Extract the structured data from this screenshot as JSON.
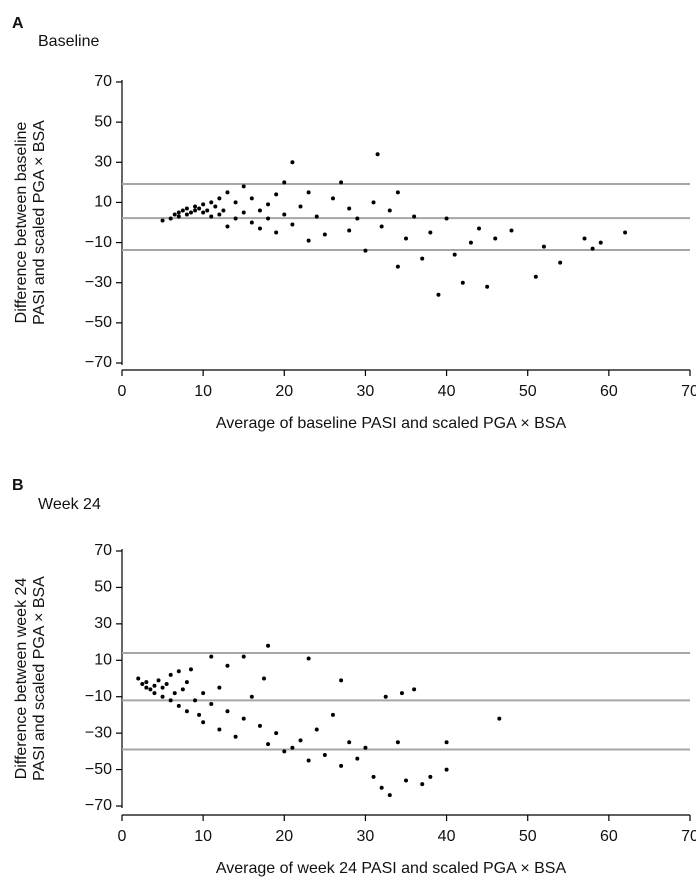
{
  "chart_data": [
    {
      "type": "scatter",
      "panel": "A",
      "subtitle": "Baseline",
      "xlabel": "Average of baseline PASI and scaled PGA × BSA",
      "ylabel": [
        "Difference between baseline",
        "PASI and scaled PGA × BSA"
      ],
      "xlim": [
        0,
        70
      ],
      "ylim": [
        -70,
        70
      ],
      "xticks": [
        0,
        10,
        20,
        30,
        40,
        50,
        60,
        70
      ],
      "yticks": [
        {
          "value": -70,
          "label": "−70"
        },
        {
          "value": -50,
          "label": "−50"
        },
        {
          "value": -30,
          "label": "−30"
        },
        {
          "value": -10,
          "label": "−10"
        },
        10,
        30,
        50,
        70
      ],
      "hlines": [
        19.2,
        2.2,
        -13.7
      ],
      "hline_color": "#a6a6a6",
      "color": "#000000",
      "x": [
        5,
        6,
        6.5,
        7,
        7,
        7.5,
        8,
        8,
        8.5,
        9,
        9,
        9.5,
        10,
        10,
        10.5,
        11,
        11,
        11.5,
        12,
        12,
        12.5,
        13,
        13,
        14,
        14,
        15,
        15,
        16,
        16,
        17,
        17,
        18,
        18,
        19,
        19,
        20,
        20,
        21,
        21,
        22,
        23,
        23,
        24,
        25,
        26,
        27,
        28,
        28,
        29,
        30,
        31,
        31.5,
        32,
        33,
        34,
        34,
        35,
        36,
        37,
        38,
        39,
        40,
        41,
        42,
        43,
        44,
        45,
        46,
        48,
        51,
        52,
        54,
        57,
        58,
        59,
        62
      ],
      "values": [
        1,
        2,
        4,
        5,
        3,
        6,
        4,
        7,
        5,
        6,
        8,
        7,
        5,
        9,
        6,
        10,
        3,
        8,
        12,
        4,
        6,
        15,
        -2,
        10,
        2,
        18,
        5,
        0,
        12,
        6,
        -3,
        9,
        2,
        -5,
        14,
        20,
        4,
        30,
        -1,
        8,
        -9,
        15,
        3,
        -6,
        12,
        20,
        -4,
        7,
        2,
        -14,
        10,
        34,
        -2,
        6,
        -22,
        15,
        -8,
        3,
        -18,
        -5,
        -36,
        2,
        -16,
        -30,
        -10,
        -3,
        -32,
        -8,
        -4,
        -27,
        -12,
        -20,
        -8,
        -13,
        -10,
        -5
      ]
    },
    {
      "type": "scatter",
      "panel": "B",
      "subtitle": "Week 24",
      "xlabel": "Average of week 24 PASI and scaled PGA × BSA",
      "ylabel": [
        "Difference between week 24",
        "PASI and scaled PGA × BSA"
      ],
      "xlim": [
        0,
        70
      ],
      "ylim": [
        -70,
        70
      ],
      "xticks": [
        0,
        10,
        20,
        30,
        40,
        50,
        60,
        70
      ],
      "yticks": [
        {
          "value": -70,
          "label": "−70"
        },
        {
          "value": -50,
          "label": "−50"
        },
        {
          "value": -30,
          "label": "−30"
        },
        {
          "value": -10,
          "label": "−10"
        },
        10,
        30,
        50,
        70
      ],
      "hlines": [
        14,
        -12,
        -39
      ],
      "hline_color": "#a6a6a6",
      "color": "#000000",
      "x": [
        2,
        2.5,
        3,
        3,
        3.5,
        4,
        4,
        4.5,
        5,
        5,
        5.5,
        6,
        6,
        6.5,
        7,
        7,
        7.5,
        8,
        8,
        8.5,
        9,
        9.5,
        10,
        10,
        11,
        11,
        12,
        12,
        13,
        13,
        14,
        15,
        15,
        16,
        17,
        17.5,
        18,
        18,
        19,
        20,
        21,
        22,
        23,
        23,
        24,
        25,
        26,
        27,
        27,
        28,
        29,
        30,
        31,
        32,
        32.5,
        33,
        34,
        34.5,
        35,
        36,
        37,
        38,
        40,
        40,
        46.5
      ],
      "values": [
        0,
        -3,
        -5,
        -2,
        -6,
        -4,
        -8,
        -1,
        -10,
        -5,
        -3,
        -12,
        2,
        -8,
        -15,
        4,
        -6,
        -18,
        -2,
        5,
        -12,
        -20,
        -8,
        -24,
        12,
        -14,
        -28,
        -5,
        -18,
        7,
        -32,
        -22,
        12,
        -10,
        -26,
        0,
        18,
        -36,
        -30,
        -40,
        -38,
        -34,
        11,
        -45,
        -28,
        -42,
        -20,
        -1,
        -48,
        -35,
        -44,
        -38,
        -54,
        -60,
        -10,
        -64,
        -35,
        -8,
        -56,
        -6,
        -58,
        -54,
        -50,
        -35,
        -22
      ]
    }
  ]
}
